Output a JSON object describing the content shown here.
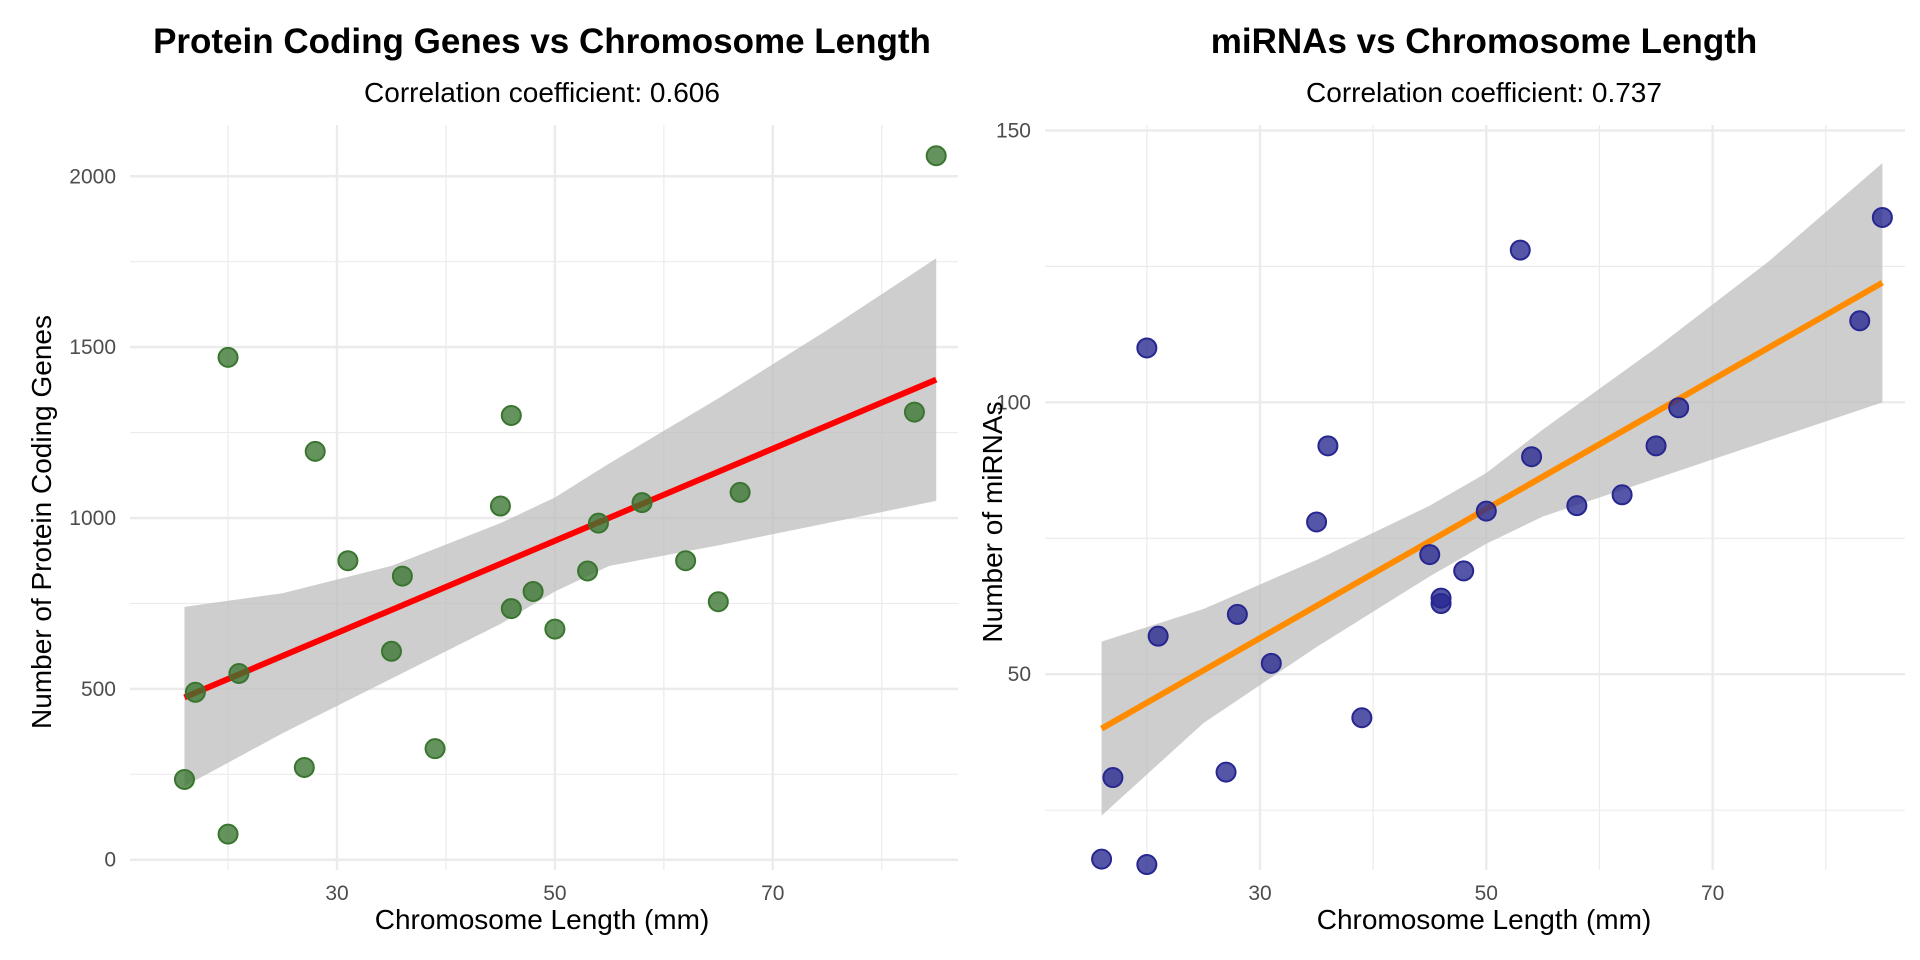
{
  "chart_data": [
    {
      "type": "scatter",
      "title": "Protein Coding Genes vs Chromosome Length",
      "subtitle": "Correlation coefficient: 0.606",
      "xlabel": "Chromosome Length (mm)",
      "ylabel": "Number of Protein Coding Genes",
      "xlim": [
        11,
        87
      ],
      "ylim": [
        -30,
        2150
      ],
      "x_ticks": [
        30,
        50,
        70
      ],
      "y_ticks": [
        0,
        500,
        1000,
        1500,
        2000
      ],
      "grid": true,
      "point_color": "#3A7530",
      "line_color": "#FF0000",
      "ci_color": "#BEBEBE",
      "points": [
        {
          "x": 16,
          "y": 235
        },
        {
          "x": 17,
          "y": 490
        },
        {
          "x": 20,
          "y": 75
        },
        {
          "x": 20,
          "y": 1470
        },
        {
          "x": 21,
          "y": 545
        },
        {
          "x": 27,
          "y": 270
        },
        {
          "x": 28,
          "y": 1195
        },
        {
          "x": 31,
          "y": 875
        },
        {
          "x": 35,
          "y": 610
        },
        {
          "x": 36,
          "y": 830
        },
        {
          "x": 39,
          "y": 325
        },
        {
          "x": 45,
          "y": 1035
        },
        {
          "x": 46,
          "y": 735
        },
        {
          "x": 46,
          "y": 1300
        },
        {
          "x": 48,
          "y": 785
        },
        {
          "x": 50,
          "y": 675
        },
        {
          "x": 53,
          "y": 845
        },
        {
          "x": 54,
          "y": 985
        },
        {
          "x": 58,
          "y": 1045
        },
        {
          "x": 62,
          "y": 875
        },
        {
          "x": 65,
          "y": 755
        },
        {
          "x": 67,
          "y": 1075
        },
        {
          "x": 83,
          "y": 1310
        },
        {
          "x": 85,
          "y": 2060
        }
      ],
      "fit": {
        "x": [
          16,
          85
        ],
        "y": [
          475,
          1405
        ]
      },
      "ci_band": {
        "x": [
          16,
          25,
          35,
          45,
          50,
          55,
          65,
          75,
          85
        ],
        "lower": [
          215,
          370,
          530,
          690,
          785,
          860,
          920,
          985,
          1050
        ],
        "upper": [
          740,
          780,
          860,
          985,
          1060,
          1160,
          1350,
          1550,
          1760
        ]
      }
    },
    {
      "type": "scatter",
      "title": "miRNAs vs Chromosome Length",
      "subtitle": "Correlation coefficient: 0.737",
      "xlabel": "Chromosome Length (mm)",
      "ylabel": "Number of miRNAs",
      "xlim": [
        11,
        87
      ],
      "ylim": [
        14,
        151
      ],
      "x_ticks": [
        30,
        50,
        70
      ],
      "y_ticks": [
        50,
        100,
        150
      ],
      "grid": true,
      "point_color": "#27278F",
      "line_color": "#FF8C00",
      "ci_color": "#BEBEBE",
      "points": [
        {
          "x": 16,
          "y": 16
        },
        {
          "x": 17,
          "y": 31
        },
        {
          "x": 20,
          "y": 15
        },
        {
          "x": 20,
          "y": 110
        },
        {
          "x": 21,
          "y": 57
        },
        {
          "x": 27,
          "y": 32
        },
        {
          "x": 28,
          "y": 61
        },
        {
          "x": 31,
          "y": 52
        },
        {
          "x": 35,
          "y": 78
        },
        {
          "x": 36,
          "y": 92
        },
        {
          "x": 39,
          "y": 42
        },
        {
          "x": 45,
          "y": 72
        },
        {
          "x": 46,
          "y": 64
        },
        {
          "x": 46,
          "y": 63
        },
        {
          "x": 48,
          "y": 69
        },
        {
          "x": 50,
          "y": 80
        },
        {
          "x": 53,
          "y": 128
        },
        {
          "x": 54,
          "y": 90
        },
        {
          "x": 58,
          "y": 81
        },
        {
          "x": 62,
          "y": 83
        },
        {
          "x": 65,
          "y": 92
        },
        {
          "x": 67,
          "y": 99
        },
        {
          "x": 83,
          "y": 115
        },
        {
          "x": 85,
          "y": 134
        }
      ],
      "fit": {
        "x": [
          16,
          85
        ],
        "y": [
          40,
          122
        ]
      },
      "ci_band": {
        "x": [
          16,
          25,
          35,
          45,
          50,
          55,
          65,
          75,
          85
        ],
        "lower": [
          24,
          41,
          55,
          68,
          74,
          79,
          86,
          93,
          100
        ],
        "upper": [
          56,
          62,
          71,
          81,
          87,
          95,
          110,
          126,
          144
        ]
      }
    }
  ]
}
